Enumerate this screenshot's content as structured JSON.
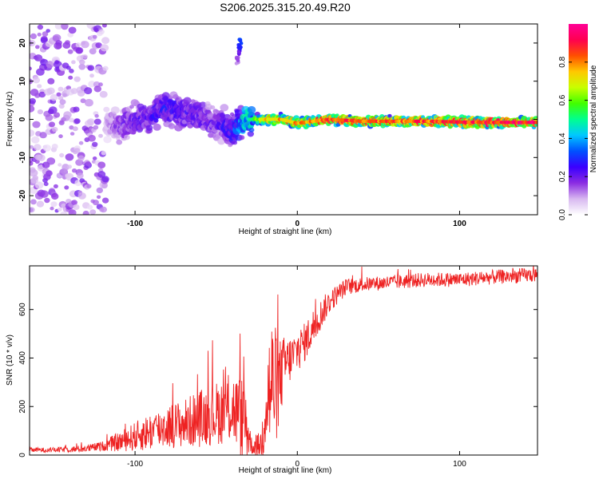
{
  "title": "S206.2025.315.20.49.R20",
  "chart_data": [
    {
      "type": "heatmap",
      "xlabel": "Height of straight line (km)",
      "ylabel": "Frequency (Hz)",
      "xlim": [
        -165,
        148
      ],
      "ylim": [
        -25,
        25
      ],
      "xticks": [
        {
          "value": -100,
          "label": "-100"
        },
        {
          "value": 0,
          "label": "0"
        },
        {
          "value": 100,
          "label": "100"
        }
      ],
      "yticks": [
        {
          "value": 20,
          "label": "20"
        },
        {
          "value": 10,
          "label": "10"
        },
        {
          "value": 0,
          "label": "0"
        },
        {
          "value": -10,
          "label": "-10"
        },
        {
          "value": -20,
          "label": "-20"
        }
      ],
      "colorbar": {
        "label": "Normalized spectral amplitude",
        "range": [
          0,
          1
        ],
        "ticks": [
          {
            "value": 0.0,
            "label": "0.0"
          },
          {
            "value": 0.2,
            "label": "0.2"
          },
          {
            "value": 0.4,
            "label": "0.4"
          },
          {
            "value": 0.6,
            "label": "0.6"
          },
          {
            "value": 0.8,
            "label": "0.8"
          }
        ],
        "colors": [
          "#ffffff",
          "#d8b8f0",
          "#8a2be2",
          "#3a00ff",
          "#0050ff",
          "#00c8ff",
          "#00ff90",
          "#40ff00",
          "#c8ff00",
          "#ffc800",
          "#ff5000",
          "#ff0050",
          "#ff0096"
        ]
      },
      "ridge": {
        "x": [
          -165,
          -140,
          -120,
          -110,
          -100,
          -90,
          -80,
          -70,
          -60,
          -50,
          -45,
          -40,
          -35,
          -30,
          -20,
          -10,
          0,
          10,
          20,
          40,
          60,
          80,
          100,
          120,
          148
        ],
        "freq": [
          0,
          0,
          0,
          -2,
          0,
          1,
          3,
          2,
          1,
          -1,
          -2,
          -3,
          -1,
          0,
          0,
          0,
          -1,
          -0.5,
          0,
          -0.5,
          -0.5,
          -0.5,
          -0.7,
          -0.8,
          -0.8
        ],
        "amplitude": [
          0.03,
          0.04,
          0.06,
          0.18,
          0.22,
          0.24,
          0.26,
          0.24,
          0.22,
          0.2,
          0.25,
          0.28,
          0.4,
          0.5,
          0.75,
          0.8,
          0.8,
          0.85,
          0.9,
          0.9,
          0.85,
          0.88,
          0.9,
          0.92,
          0.95
        ]
      },
      "streak": {
        "x": [
          -37,
          -35
        ],
        "freq": [
          15,
          21
        ]
      }
    },
    {
      "type": "line",
      "xlabel": "Height of straight line (km)",
      "ylabel": "SNR (10 * v/v)",
      "xlim": [
        -165,
        148
      ],
      "ylim": [
        0,
        780
      ],
      "xticks": [
        {
          "value": -100,
          "label": "-100"
        },
        {
          "value": 0,
          "label": "0"
        },
        {
          "value": 100,
          "label": "100"
        }
      ],
      "yticks": [
        {
          "value": 0,
          "label": "0"
        },
        {
          "value": 200,
          "label": "200"
        },
        {
          "value": 400,
          "label": "400"
        },
        {
          "value": 600,
          "label": "600"
        }
      ],
      "color": "#ee2222",
      "envelope": {
        "x": [
          -165,
          -150,
          -130,
          -120,
          -110,
          -100,
          -90,
          -80,
          -70,
          -60,
          -50,
          -40,
          -32,
          -28,
          -22,
          -20,
          -15,
          -12,
          -8,
          -5,
          0,
          5,
          10,
          15,
          20,
          25,
          30,
          40,
          60,
          80,
          100,
          120,
          148
        ],
        "mean": [
          20,
          20,
          25,
          35,
          50,
          70,
          90,
          110,
          120,
          140,
          160,
          180,
          120,
          30,
          40,
          200,
          260,
          260,
          360,
          380,
          420,
          460,
          520,
          580,
          630,
          660,
          690,
          700,
          710,
          720,
          720,
          730,
          740
        ],
        "spread": [
          10,
          10,
          15,
          20,
          40,
          60,
          80,
          90,
          100,
          120,
          130,
          150,
          180,
          30,
          60,
          250,
          300,
          200,
          120,
          100,
          90,
          80,
          80,
          60,
          50,
          40,
          35,
          30,
          30,
          30,
          30,
          30,
          30
        ]
      }
    }
  ]
}
